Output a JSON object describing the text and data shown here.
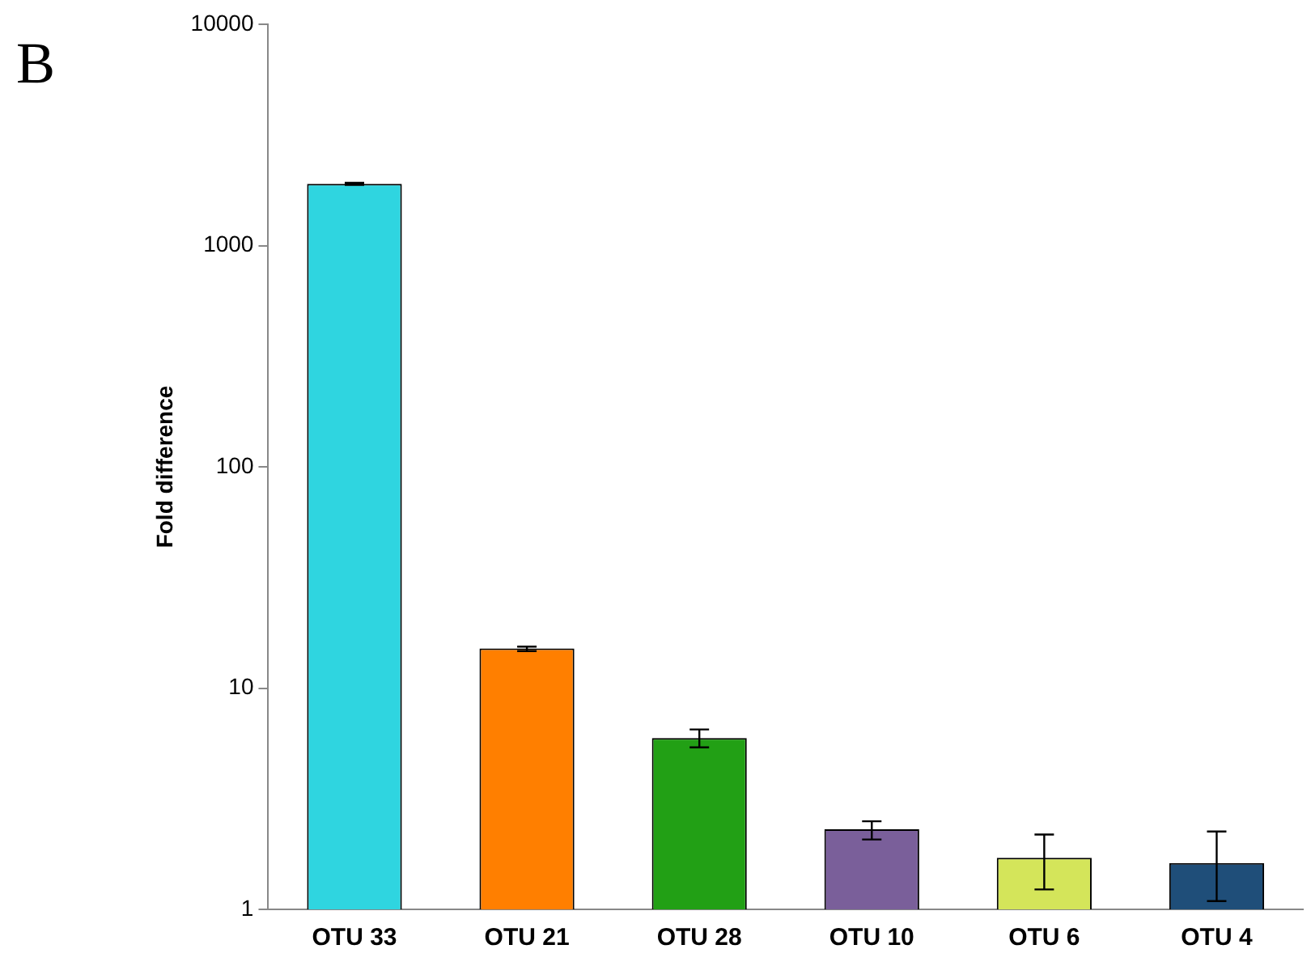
{
  "chart_data": {
    "type": "bar",
    "ylabel": "Fold difference",
    "annotations": [
      "B"
    ],
    "categories": [
      "OTU 33",
      "OTU 21",
      "OTU 28",
      "OTU 10",
      "OTU 6",
      "OTU 4"
    ],
    "values": [
      1900,
      15.1,
      5.95,
      2.3,
      1.71,
      1.62
    ],
    "colors": [
      "#2fd5e0",
      "#ff7f00",
      "#22a015",
      "#7a5f9a",
      "#d4e55a",
      "#1f4e79"
    ],
    "errors": [
      [
        1880,
        1920
      ],
      [
        14.7,
        15.4
      ],
      [
        5.4,
        6.5
      ],
      [
        2.07,
        2.5
      ],
      [
        1.23,
        2.18
      ],
      [
        1.09,
        2.25
      ]
    ],
    "log": "y",
    "ylim": [
      1,
      10000
    ],
    "yticks": [
      1,
      10,
      100,
      1000,
      10000
    ],
    "grid": false,
    "legend": false
  }
}
